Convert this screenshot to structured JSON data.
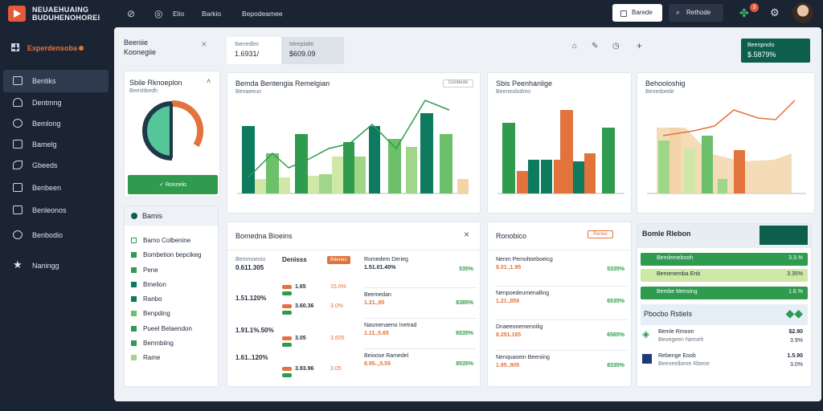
{
  "brand": {
    "line1": "NEUAEHUAING",
    "line2": "BUDUHENOHOREI"
  },
  "topbar": {
    "link1": "Elio",
    "link2": "Barkio",
    "link3": "Bepodeamee",
    "btn_white": "Barede",
    "btn_dark": "Rethode",
    "notif_count": "3"
  },
  "sidebar": {
    "header": "Experdensoba",
    "items": [
      "Bentiks",
      "Dentmng",
      "Bemlong",
      "Bamelg",
      "Gbeeds",
      "Benbeen",
      "Benleonos",
      "Benbodio",
      "Naningg"
    ]
  },
  "tabs": {
    "t1": {
      "label": "Beeniie",
      "sub": "Koonegiie"
    },
    "t2": {
      "label": "Ibenedlec",
      "value": "1.6931/"
    },
    "t3": {
      "label": "Meeplatle",
      "value": "$609.09"
    },
    "right_card": {
      "label": "Beenpnolo",
      "value": "$.5879%"
    }
  },
  "colors": {
    "green": "#2e9b4f",
    "dark_green": "#0e7a5e",
    "orange": "#e2733c",
    "light_green": "#9fd68a",
    "pale": "#f3d3a8"
  },
  "donut_card": {
    "title": "Sbile Rknoeplon",
    "subtitle": "Beesltbedh",
    "button": "Ronnelo"
  },
  "chart1": {
    "title": "Bemda Bentengia Remelgian",
    "subtitle": "Benaeeuo",
    "badge": "Conbede"
  },
  "chart2": {
    "title": "Sbis Peenhanlige",
    "subtitle": "Beeneolodmo"
  },
  "chart3": {
    "title": "Behooloshig",
    "subtitle": "Benedoede"
  },
  "list_card": {
    "header": "Bamis",
    "items": [
      "Bamo Colbenine",
      "Bombetion bepcikeg",
      "Pene",
      "Bmelion",
      "Ranbo",
      "Benpding",
      "Pueel Belaendon",
      "Bemnbiing",
      "Rame"
    ]
  },
  "table1": {
    "title": "Bomedna Bioeins",
    "close": "×",
    "left": [
      {
        "label": "Bemmoeoio",
        "value": "0.611.305"
      },
      {
        "label": "",
        "value": "1.51.120%"
      },
      {
        "label": "",
        "value": "1.91.1%.50%"
      },
      {
        "label": "",
        "value": "1.61..120%"
      }
    ],
    "mid_head": "Denisss",
    "mid_badge": "Bdeneo",
    "mid": [
      {
        "value": "1.65",
        "pct": "15.0%"
      },
      {
        "value": "3.60.36",
        "pct": "3.0%"
      },
      {
        "value": "3.05",
        "pct": "3.605"
      },
      {
        "value": "3.93.96",
        "pct": "3.05"
      }
    ],
    "right": [
      {
        "label": "Romedem Derieg",
        "value": "1.51.01.40%",
        "pct": "535%"
      },
      {
        "label": "Beemedan",
        "value": "1.21.,95",
        "pct": "8385%"
      },
      {
        "label": "Nasmenaeno Inetrad",
        "value": "1.11.,5.65",
        "pct": "6535%"
      },
      {
        "label": "Beioose Ramedel",
        "value": "8.95..,5.55",
        "pct": "8535%"
      }
    ]
  },
  "table2": {
    "title": "Ronobico",
    "badge": "Renee",
    "rows": [
      {
        "label": "Nenm Pemoltoeboeicg",
        "value": "$.01.,1.95",
        "pct": "5335%"
      },
      {
        "label": "Nenpoedeumenalling",
        "value": "1.21.,859",
        "pct": "6535%"
      },
      {
        "label": "Dnaeeonemenoilig",
        "value": "8.251.165",
        "pct": "6565%"
      },
      {
        "label": "Nenquaoein Beeniing",
        "value": "1.85.,905",
        "pct": "8335%"
      }
    ]
  },
  "side_card": {
    "title": "Bomle Rlebon",
    "bars": [
      {
        "label": "Bemlemebnoh",
        "value": "3.3.%"
      },
      {
        "label": "Bemenemba Enb",
        "value": "3.35%"
      },
      {
        "label": "Bembe Mensing",
        "value": "1.6.%"
      }
    ],
    "map_title": "Pbocbo Rstiels",
    "map_rows": [
      {
        "label": "Bemle Rmoon",
        "sub": "Beoegeen Nemeh",
        "value": "$2.90",
        "pct": "3.9%"
      },
      {
        "label": "Rebenge Eoob",
        "sub": "Beeneelbene Rbeoe",
        "value": "1.5.90",
        "pct": "3.0%"
      }
    ]
  }
}
